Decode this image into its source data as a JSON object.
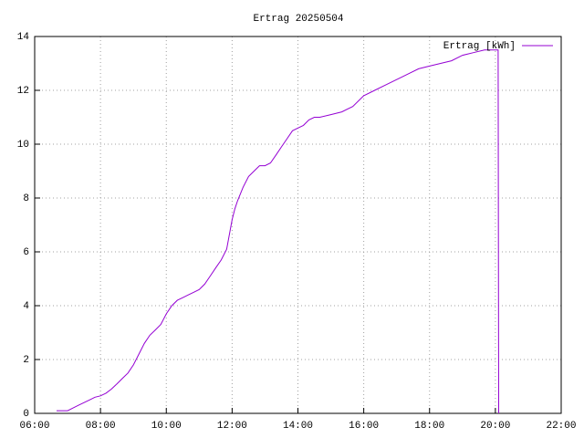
{
  "chart_data": {
    "type": "line",
    "title": "Ertrag 20250504",
    "x": [
      "06:40",
      "07:00",
      "07:10",
      "07:20",
      "07:30",
      "07:40",
      "07:50",
      "08:00",
      "08:10",
      "08:20",
      "08:30",
      "08:40",
      "08:50",
      "09:00",
      "09:10",
      "09:20",
      "09:30",
      "09:40",
      "09:50",
      "10:00",
      "10:10",
      "10:20",
      "10:30",
      "10:40",
      "10:50",
      "11:00",
      "11:10",
      "11:20",
      "11:30",
      "11:40",
      "11:50",
      "12:00",
      "12:05",
      "12:10",
      "12:20",
      "12:30",
      "12:40",
      "12:50",
      "13:00",
      "13:10",
      "13:20",
      "13:30",
      "13:40",
      "13:50",
      "14:00",
      "14:10",
      "14:20",
      "14:30",
      "14:40",
      "15:00",
      "15:20",
      "15:40",
      "16:00",
      "16:20",
      "16:40",
      "17:00",
      "17:20",
      "17:40",
      "18:00",
      "18:20",
      "18:40",
      "19:00",
      "19:20",
      "19:40",
      "20:00",
      "20:05",
      "20:06"
    ],
    "series": [
      {
        "name": "Ertrag [kWh]",
        "color": "#9400d3",
        "values": [
          0.1,
          0.1,
          0.2,
          0.3,
          0.4,
          0.5,
          0.6,
          0.65,
          0.75,
          0.9,
          1.1,
          1.3,
          1.5,
          1.8,
          2.2,
          2.6,
          2.9,
          3.1,
          3.3,
          3.7,
          4.0,
          4.2,
          4.3,
          4.4,
          4.5,
          4.6,
          4.8,
          5.1,
          5.4,
          5.7,
          6.1,
          7.2,
          7.6,
          7.9,
          8.4,
          8.8,
          9.0,
          9.2,
          9.2,
          9.3,
          9.6,
          9.9,
          10.2,
          10.5,
          10.6,
          10.7,
          10.9,
          11.0,
          11.0,
          11.1,
          11.2,
          11.4,
          11.8,
          12.0,
          12.2,
          12.4,
          12.6,
          12.8,
          12.9,
          13.0,
          13.1,
          13.3,
          13.4,
          13.5,
          13.5,
          13.5,
          0
        ]
      }
    ],
    "xlim": [
      "06:00",
      "22:00"
    ],
    "xticks": [
      "06:00",
      "08:00",
      "10:00",
      "12:00",
      "14:00",
      "16:00",
      "18:00",
      "20:00",
      "22:00"
    ],
    "ylim": [
      0,
      14
    ],
    "yticks": [
      0,
      2,
      4,
      6,
      8,
      10,
      12,
      14
    ],
    "grid": true,
    "legend": "top-right"
  }
}
